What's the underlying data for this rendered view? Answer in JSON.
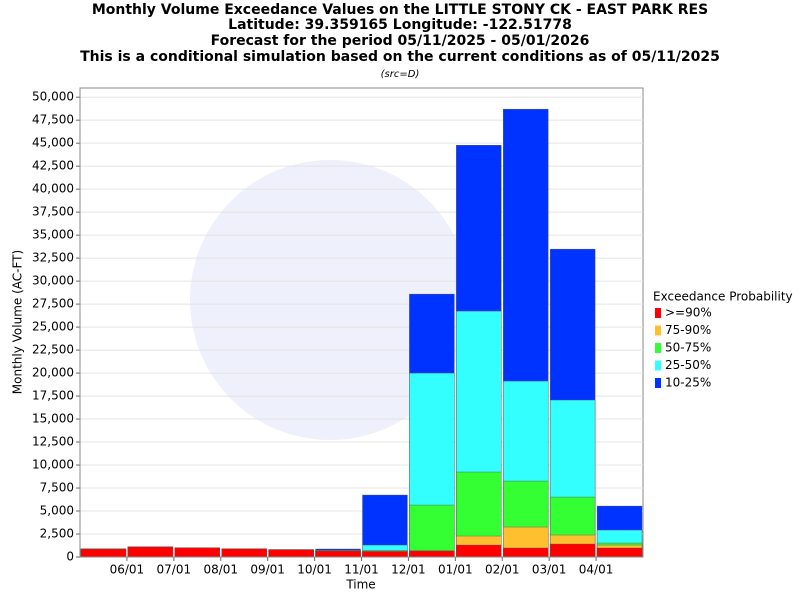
{
  "chart_data": {
    "type": "bar",
    "title": [
      "Monthly Volume Exceedance Values on the LITTLE STONY CK - EAST PARK RES",
      "Latitude: 39.359165 Longitude: -122.51778",
      "Forecast for the period 05/11/2025 - 05/01/2026",
      "This is a conditional simulation based on the current conditions as of 05/11/2025"
    ],
    "subtitle": "(src=D)",
    "x_label": "Time",
    "y_label": "Monthly Volume (AC-FT)",
    "legend_title": "Exceedance Probability",
    "categories": [
      null,
      null,
      null,
      null,
      null,
      null,
      null,
      null,
      null,
      null,
      null,
      null
    ],
    "xtick_labels": [
      "06/01",
      "07/01",
      "08/01",
      "09/01",
      "10/01",
      "11/01",
      "12/01",
      "01/01",
      "02/01",
      "03/01",
      "04/01"
    ],
    "series": [
      {
        "name": ">=90%",
        "color": "#ff0000",
        "values": [
          870,
          1100,
          1000,
          900,
          800,
          650,
          600,
          650,
          1300,
          980,
          1410,
          980
        ]
      },
      {
        "name": "75-90%",
        "color": "#ffc030",
        "values": [
          870,
          1100,
          1000,
          900,
          800,
          680,
          650,
          700,
          2280,
          3260,
          2390,
          1300
        ]
      },
      {
        "name": "50-75%",
        "color": "#33ff33",
        "values": [
          870,
          1100,
          1000,
          900,
          800,
          700,
          700,
          5650,
          9240,
          8260,
          6520,
          1520
        ]
      },
      {
        "name": "25-50%",
        "color": "#33ffff",
        "values": [
          870,
          1100,
          1000,
          900,
          800,
          750,
          1300,
          20000,
          26740,
          19130,
          17070,
          2930
        ]
      },
      {
        "name": "10-25%",
        "color": "#0033ff",
        "values": [
          870,
          1100,
          1000,
          900,
          800,
          870,
          6740,
          28590,
          44780,
          48700,
          33480,
          5540
        ]
      }
    ],
    "ylim": [
      0,
      51000
    ],
    "yticks": [
      {
        "value": 0,
        "label": "0"
      },
      {
        "value": 2500,
        "label": "2,500"
      },
      {
        "value": 5000,
        "label": "5,000"
      },
      {
        "value": 7500,
        "label": "7,500"
      },
      {
        "value": 10000,
        "label": "10,000"
      },
      {
        "value": 12500,
        "label": "12,500"
      },
      {
        "value": 15000,
        "label": "15,000"
      },
      {
        "value": 17500,
        "label": "17,500"
      },
      {
        "value": 20000,
        "label": "20,000"
      },
      {
        "value": 22500,
        "label": "22,500"
      },
      {
        "value": 25000,
        "label": "25,000"
      },
      {
        "value": 27500,
        "label": "27,500"
      },
      {
        "value": 30000,
        "label": "30,000"
      },
      {
        "value": 32500,
        "label": "32,500"
      },
      {
        "value": 35000,
        "label": "35,000"
      },
      {
        "value": 37500,
        "label": "37,500"
      },
      {
        "value": 40000,
        "label": "40,000"
      },
      {
        "value": 42500,
        "label": "42,500"
      },
      {
        "value": 45000,
        "label": "45,000"
      },
      {
        "value": 47500,
        "label": "47,500"
      },
      {
        "value": 50000,
        "label": "50,000"
      }
    ],
    "grid": true
  }
}
